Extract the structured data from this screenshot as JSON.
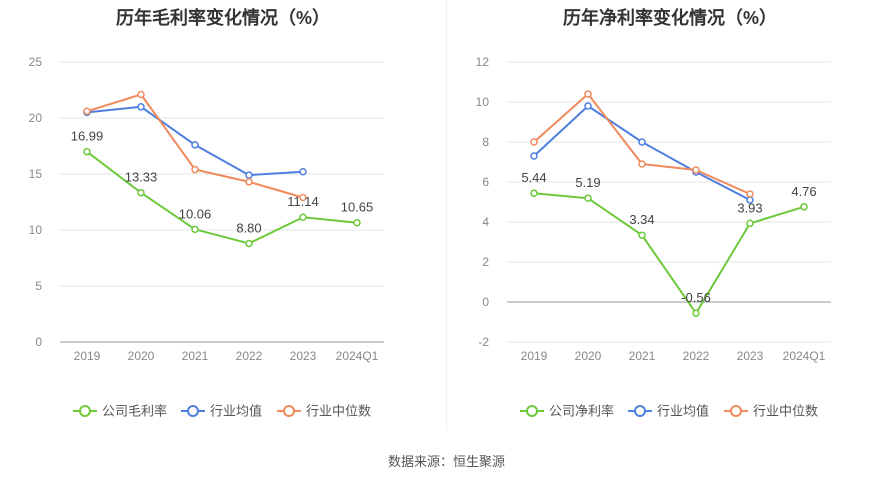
{
  "source_text": "数据来源：恒生聚源",
  "colors": {
    "company": "#6cc93a",
    "industry_avg": "#4e7ee0",
    "industry_median": "#f08a5d",
    "grid": "#e6e6e6",
    "axis": "#999999",
    "tick_text": "#888888",
    "label_text": "#444444",
    "legend_text": "#555555"
  },
  "chart_data": [
    {
      "type": "line",
      "title": "历年毛利率变化情况（%）",
      "categories": [
        "2019",
        "2020",
        "2021",
        "2022",
        "2023",
        "2024Q1"
      ],
      "ylim": [
        0,
        25
      ],
      "yticks": [
        0,
        5,
        10,
        15,
        20,
        25
      ],
      "grid": true,
      "legend_position": "bottom",
      "series": [
        {
          "name": "公司毛利率",
          "color_key": "company",
          "values": [
            16.99,
            13.33,
            10.06,
            8.8,
            11.14,
            10.65
          ],
          "labels": [
            "16.99",
            "13.33",
            "10.06",
            "8.80",
            "11.14",
            "10.65"
          ]
        },
        {
          "name": "行业均值",
          "color_key": "industry_avg",
          "values": [
            20.5,
            21.0,
            17.6,
            14.9,
            15.2,
            null
          ]
        },
        {
          "name": "行业中位数",
          "color_key": "industry_median",
          "values": [
            20.6,
            22.1,
            15.4,
            14.3,
            12.9,
            null
          ]
        }
      ]
    },
    {
      "type": "line",
      "title": "历年净利率变化情况（%）",
      "categories": [
        "2019",
        "2020",
        "2021",
        "2022",
        "2023",
        "2024Q1"
      ],
      "ylim": [
        -2,
        12
      ],
      "yticks": [
        -2,
        0,
        2,
        4,
        6,
        8,
        10,
        12
      ],
      "grid": true,
      "legend_position": "bottom",
      "series": [
        {
          "name": "公司净利率",
          "color_key": "company",
          "values": [
            5.44,
            5.19,
            3.34,
            -0.56,
            3.93,
            4.76
          ],
          "labels": [
            "5.44",
            "5.19",
            "3.34",
            "-0.56",
            "3.93",
            "4.76"
          ]
        },
        {
          "name": "行业均值",
          "color_key": "industry_avg",
          "values": [
            7.3,
            9.8,
            8.0,
            6.5,
            5.1,
            null
          ]
        },
        {
          "name": "行业中位数",
          "color_key": "industry_median",
          "values": [
            8.0,
            10.4,
            6.9,
            6.6,
            5.4,
            null
          ]
        }
      ]
    }
  ]
}
